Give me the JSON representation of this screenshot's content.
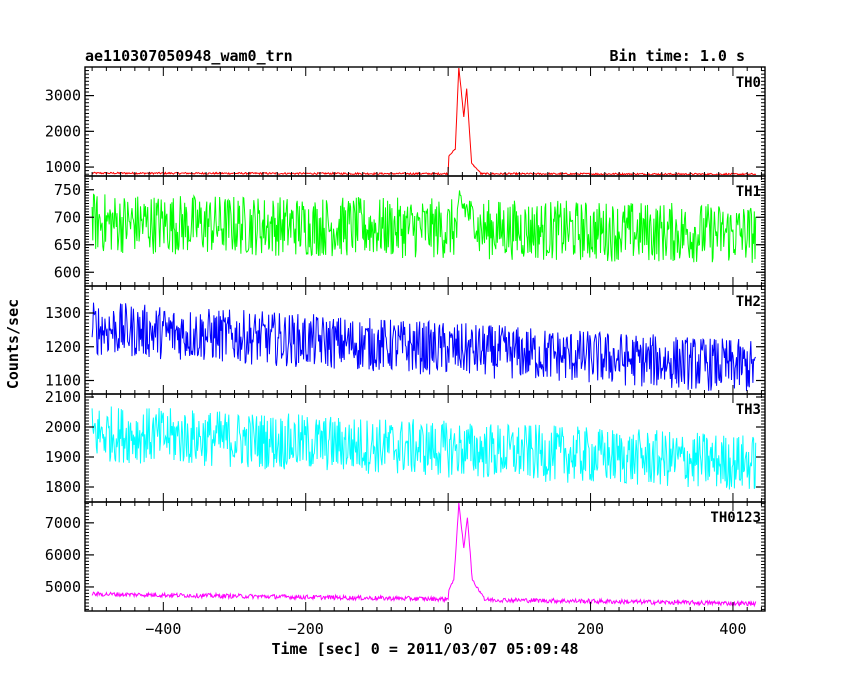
{
  "header": {
    "left_title": "ae110307050948_wam0_trn",
    "right_title": "Bin time: 1.0 s"
  },
  "chart_data": {
    "type": "line",
    "xlabel": "Time [sec] 0 = 2011/03/07 05:09:48",
    "ylabel": "Counts/sec",
    "xlim": [
      -510,
      445
    ],
    "x_ticks": [
      -400,
      -200,
      0,
      200,
      400
    ],
    "x_range": [
      -500,
      432
    ],
    "grid": false,
    "panels": [
      {
        "name": "TH0",
        "color": "#ff0000",
        "ylim": [
          750,
          3800
        ],
        "y_ticks": [
          1000,
          2000,
          3000
        ],
        "baseline_start": 830,
        "baseline_end": 800,
        "noise": 25,
        "peaks": [
          {
            "t": 0,
            "v": 1300
          },
          {
            "t": 10,
            "v": 1500
          },
          {
            "t": 15,
            "v": 3800
          },
          {
            "t": 22,
            "v": 2400
          },
          {
            "t": 26,
            "v": 3200
          },
          {
            "t": 33,
            "v": 1100
          },
          {
            "t": 45,
            "v": 850
          }
        ]
      },
      {
        "name": "TH1",
        "color": "#00ff00",
        "ylim": [
          575,
          775
        ],
        "y_ticks": [
          600,
          650,
          700,
          750
        ],
        "baseline_start": 690,
        "baseline_end": 670,
        "noise": 55,
        "peaks": [
          {
            "t": 15,
            "v": 730
          },
          {
            "t": 40,
            "v": 690
          }
        ]
      },
      {
        "name": "TH2",
        "color": "#0000ff",
        "ylim": [
          1060,
          1380
        ],
        "y_ticks": [
          1100,
          1200,
          1300
        ],
        "baseline_start": 1255,
        "baseline_end": 1140,
        "noise": 80,
        "peaks": []
      },
      {
        "name": "TH3",
        "color": "#00ffff",
        "ylim": [
          1750,
          2110
        ],
        "y_ticks": [
          1800,
          1900,
          2000,
          2100
        ],
        "baseline_start": 1980,
        "baseline_end": 1880,
        "noise": 95,
        "peaks": []
      },
      {
        "name": "TH0123",
        "color": "#ff00ff",
        "ylim": [
          4250,
          7650
        ],
        "y_ticks": [
          5000,
          6000,
          7000
        ],
        "baseline_start": 4780,
        "baseline_end": 4480,
        "noise": 70,
        "peaks": [
          {
            "t": 0,
            "v": 4900
          },
          {
            "t": 8,
            "v": 5200
          },
          {
            "t": 15,
            "v": 7600
          },
          {
            "t": 22,
            "v": 6200
          },
          {
            "t": 27,
            "v": 7200
          },
          {
            "t": 34,
            "v": 5200
          },
          {
            "t": 50,
            "v": 4700
          }
        ]
      }
    ]
  }
}
